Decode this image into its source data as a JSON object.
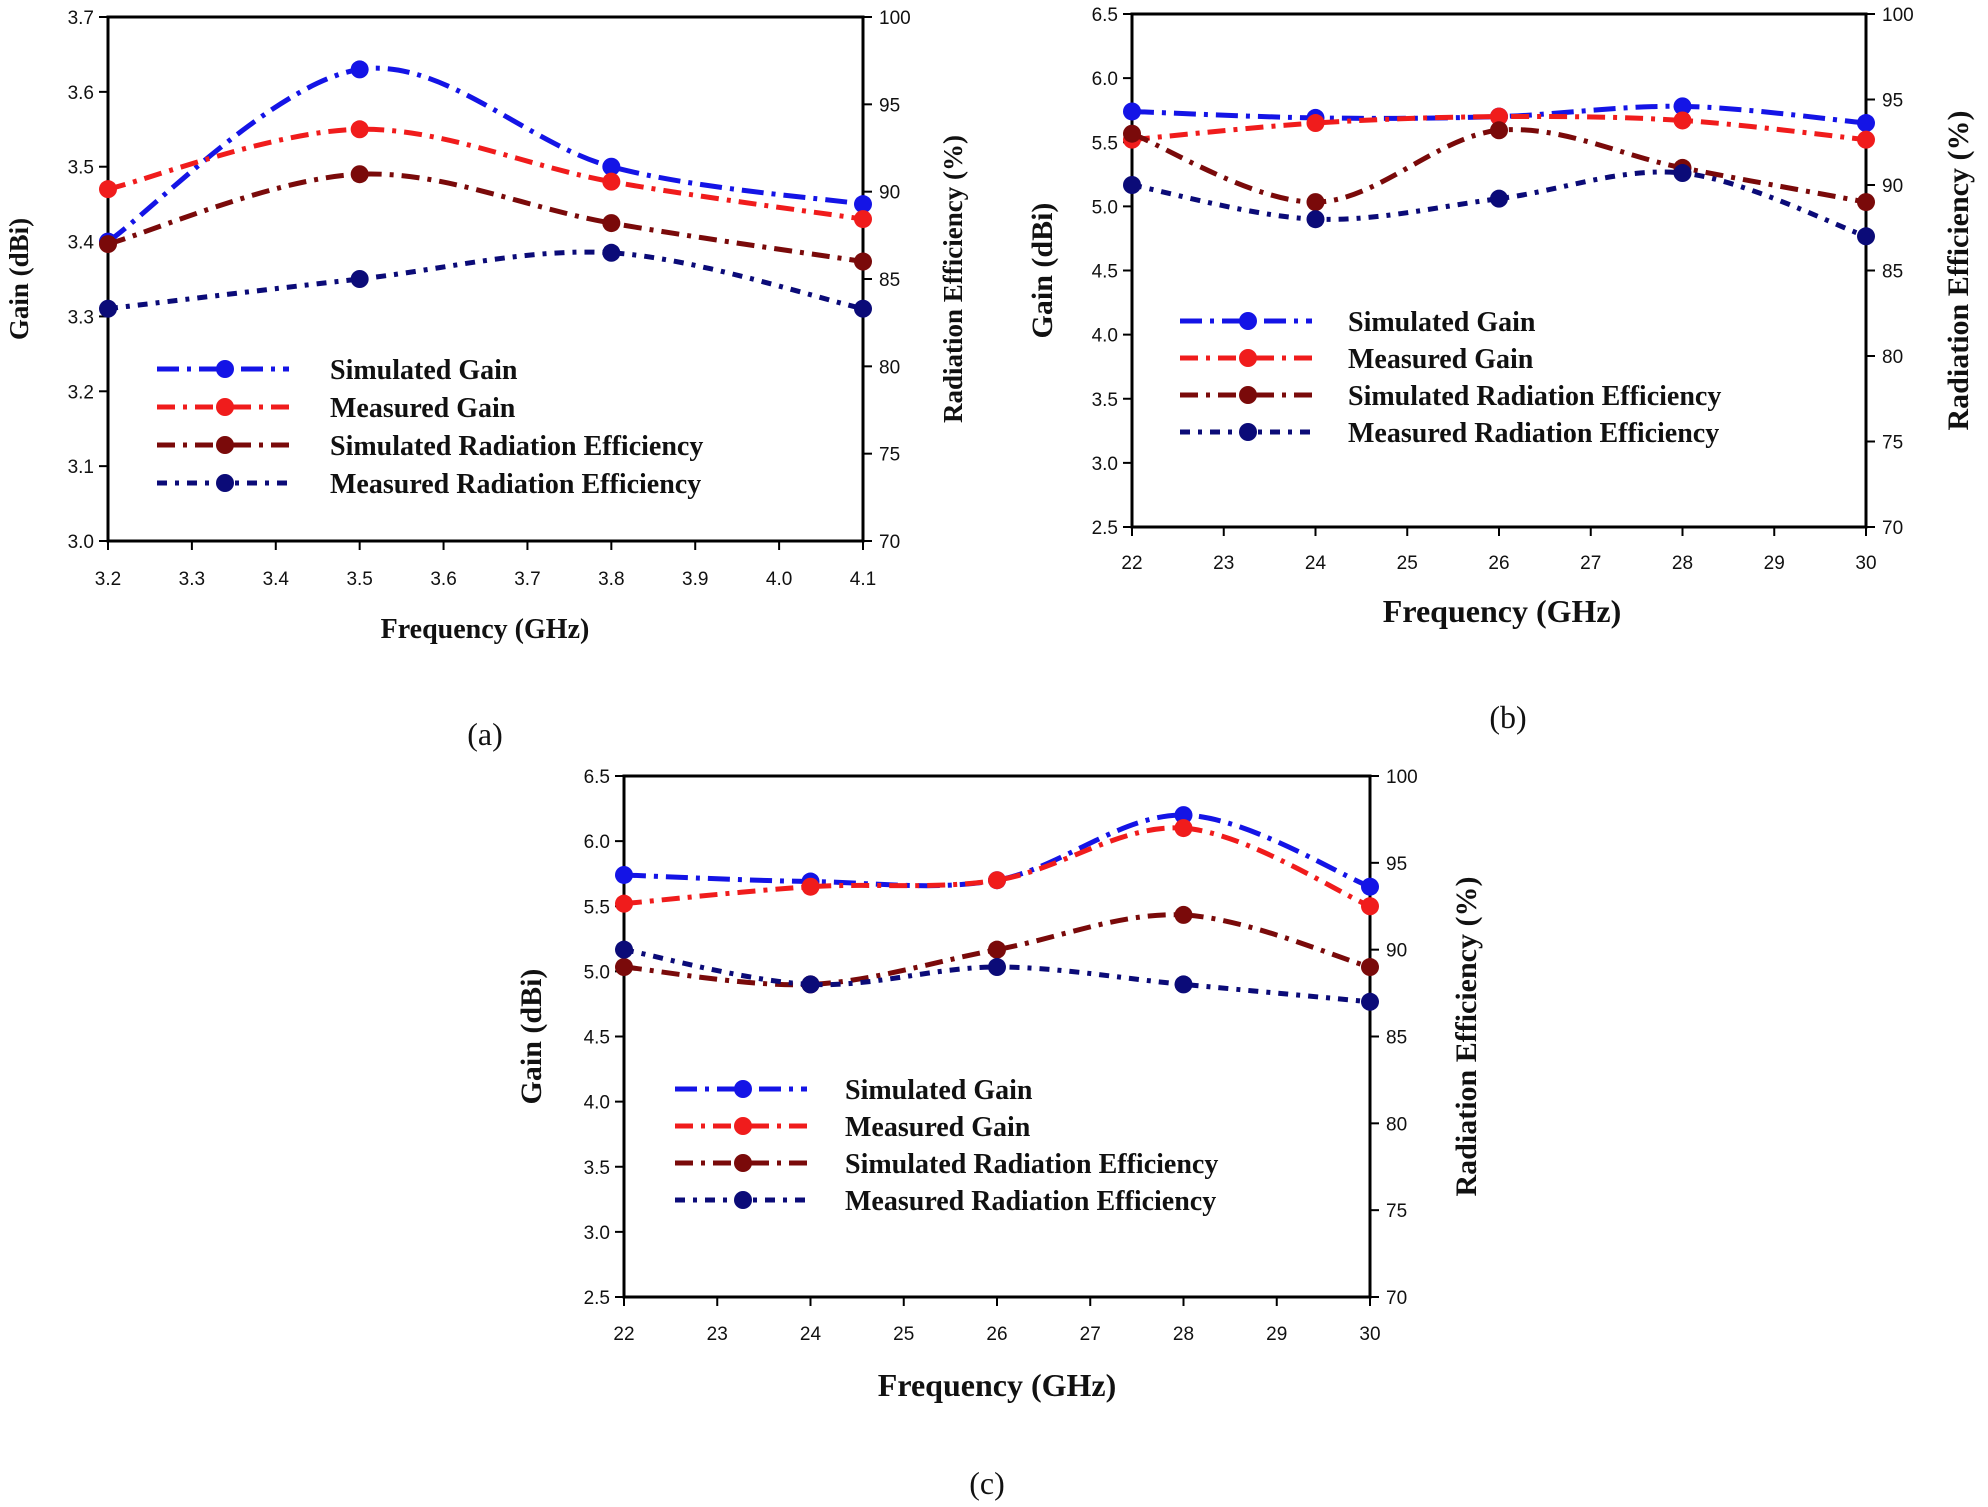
{
  "figure": {
    "panels": [
      "(a)",
      "(b)",
      "(c)"
    ]
  },
  "colors": {
    "simulated_gain": "#1414e6",
    "measured_gain": "#f01c1c",
    "simulated_eff": "#7a0a0a",
    "measured_eff": "#0b0b78"
  },
  "chart_data": [
    {
      "type": "line",
      "panel_label": "(a)",
      "xlabel": "Frequency (GHz)",
      "ylabel": "Gain (dBi)",
      "y2label": "Radiation Efficiency (%)",
      "xlim": [
        3.2,
        4.1
      ],
      "ylim": [
        3.0,
        3.7
      ],
      "y2lim": [
        70,
        100
      ],
      "xticks": [
        "3.2",
        "3.3",
        "3.4",
        "3.5",
        "3.6",
        "3.7",
        "3.8",
        "3.9",
        "4.0",
        "4.1"
      ],
      "yticks": [
        "3.0",
        "3.1",
        "3.2",
        "3.3",
        "3.4",
        "3.5",
        "3.6",
        "3.7"
      ],
      "y2ticks": [
        "70",
        "75",
        "80",
        "85",
        "90",
        "95",
        "100"
      ],
      "legend": [
        "Simulated Gain",
        "Measured Gain",
        "Simulated Radiation Efficiency",
        "Measured Radiation Efficiency"
      ],
      "series": [
        {
          "name": "Simulated Gain",
          "axis": "left",
          "x": [
            3.2,
            3.5,
            3.8,
            4.1
          ],
          "values": [
            3.4,
            3.63,
            3.5,
            3.45
          ]
        },
        {
          "name": "Measured Gain",
          "axis": "left",
          "x": [
            3.2,
            3.5,
            3.8,
            4.1
          ],
          "values": [
            3.47,
            3.55,
            3.48,
            3.43
          ]
        },
        {
          "name": "Simulated Radiation Efficiency",
          "axis": "right",
          "x": [
            3.2,
            3.5,
            3.8,
            4.1
          ],
          "values": [
            87.0,
            91.0,
            88.2,
            86.0
          ]
        },
        {
          "name": "Measured Radiation Efficiency",
          "axis": "right",
          "x": [
            3.2,
            3.5,
            3.8,
            4.1
          ],
          "values": [
            83.3,
            85.0,
            86.5,
            83.3
          ]
        }
      ]
    },
    {
      "type": "line",
      "panel_label": "(b)",
      "xlabel": "Frequency (GHz)",
      "ylabel": "Gain (dBi)",
      "y2label": "Radiation Efficiency (%)",
      "xlim": [
        22,
        30
      ],
      "ylim": [
        2.5,
        6.5
      ],
      "y2lim": [
        70,
        100
      ],
      "xticks": [
        "22",
        "23",
        "24",
        "25",
        "26",
        "27",
        "28",
        "29",
        "30"
      ],
      "yticks": [
        "2.5",
        "3.0",
        "3.5",
        "4.0",
        "4.5",
        "5.0",
        "5.5",
        "6.0",
        "6.5"
      ],
      "y2ticks": [
        "70",
        "75",
        "80",
        "85",
        "90",
        "95",
        "100"
      ],
      "legend": [
        "Simulated Gain",
        "Measured Gain",
        "Simulated Radiation Efficiency",
        "Measured Radiation Efficiency"
      ],
      "series": [
        {
          "name": "Simulated Gain",
          "axis": "left",
          "x": [
            22,
            24,
            26,
            28,
            30
          ],
          "values": [
            5.74,
            5.69,
            5.7,
            5.78,
            5.65
          ]
        },
        {
          "name": "Measured Gain",
          "axis": "left",
          "x": [
            22,
            24,
            26,
            28,
            30
          ],
          "values": [
            5.52,
            5.65,
            5.7,
            5.67,
            5.52
          ]
        },
        {
          "name": "Simulated Radiation Efficiency",
          "axis": "right",
          "x": [
            22,
            24,
            26,
            28,
            30
          ],
          "values": [
            93.0,
            89.0,
            93.2,
            91.0,
            89.0
          ]
        },
        {
          "name": "Measured Radiation Efficiency",
          "axis": "right",
          "x": [
            22,
            24,
            26,
            28,
            30
          ],
          "values": [
            90.0,
            88.0,
            89.2,
            90.7,
            87.0
          ]
        }
      ]
    },
    {
      "type": "line",
      "panel_label": "(c)",
      "xlabel": "Frequency (GHz)",
      "ylabel": "Gain (dBi)",
      "y2label": "Radiation Efficiency (%)",
      "xlim": [
        22,
        30
      ],
      "ylim": [
        2.5,
        6.5
      ],
      "y2lim": [
        70,
        100
      ],
      "xticks": [
        "22",
        "23",
        "24",
        "25",
        "26",
        "27",
        "28",
        "29",
        "30"
      ],
      "yticks": [
        "2.5",
        "3.0",
        "3.5",
        "4.0",
        "4.5",
        "5.0",
        "5.5",
        "6.0",
        "6.5"
      ],
      "y2ticks": [
        "70",
        "75",
        "80",
        "85",
        "90",
        "95",
        "100"
      ],
      "legend": [
        "Simulated Gain",
        "Measured Gain",
        "Simulated Radiation Efficiency",
        "Measured Radiation Efficiency"
      ],
      "series": [
        {
          "name": "Simulated Gain",
          "axis": "left",
          "x": [
            22,
            24,
            26,
            28,
            30
          ],
          "values": [
            5.74,
            5.69,
            5.7,
            6.2,
            5.65
          ]
        },
        {
          "name": "Measured Gain",
          "axis": "left",
          "x": [
            22,
            24,
            26,
            28,
            30
          ],
          "values": [
            5.52,
            5.65,
            5.7,
            6.1,
            5.5
          ]
        },
        {
          "name": "Simulated Radiation Efficiency",
          "axis": "right",
          "x": [
            22,
            24,
            26,
            28,
            30
          ],
          "values": [
            89.0,
            88.0,
            90.0,
            92.0,
            89.0
          ]
        },
        {
          "name": "Measured Radiation Efficiency",
          "axis": "right",
          "x": [
            22,
            24,
            26,
            28,
            30
          ],
          "values": [
            90.0,
            88.0,
            89.0,
            88.0,
            87.0
          ]
        }
      ]
    }
  ]
}
